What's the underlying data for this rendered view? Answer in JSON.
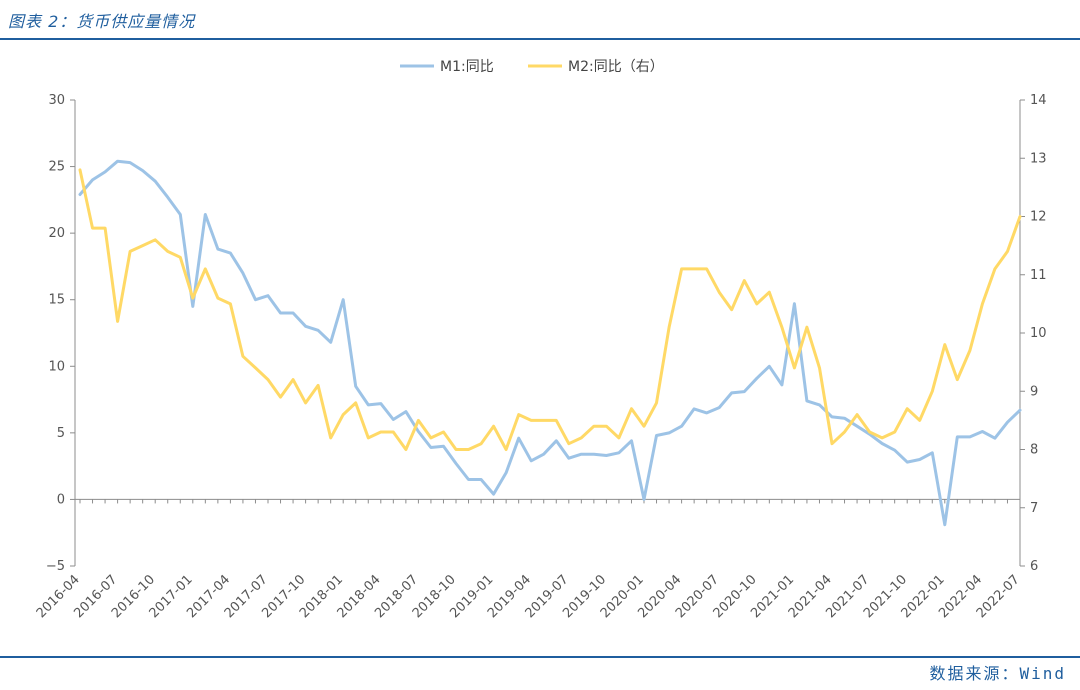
{
  "header": {
    "title": "图表 2：货币供应量情况"
  },
  "footer": {
    "source": "数据来源：Wind"
  },
  "chart_data": {
    "type": "line",
    "title": "",
    "x": [
      "2016-04",
      "2016-05",
      "2016-06",
      "2016-07",
      "2016-08",
      "2016-09",
      "2016-10",
      "2016-11",
      "2016-12",
      "2017-01",
      "2017-02",
      "2017-03",
      "2017-04",
      "2017-05",
      "2017-06",
      "2017-07",
      "2017-08",
      "2017-09",
      "2017-10",
      "2017-11",
      "2017-12",
      "2018-01",
      "2018-02",
      "2018-03",
      "2018-04",
      "2018-05",
      "2018-06",
      "2018-07",
      "2018-08",
      "2018-09",
      "2018-10",
      "2018-11",
      "2018-12",
      "2019-01",
      "2019-02",
      "2019-03",
      "2019-04",
      "2019-05",
      "2019-06",
      "2019-07",
      "2019-08",
      "2019-09",
      "2019-10",
      "2019-11",
      "2019-12",
      "2020-01",
      "2020-02",
      "2020-03",
      "2020-04",
      "2020-05",
      "2020-06",
      "2020-07",
      "2020-08",
      "2020-09",
      "2020-10",
      "2020-11",
      "2020-12",
      "2021-01",
      "2021-02",
      "2021-03",
      "2021-04",
      "2021-05",
      "2021-06",
      "2021-07",
      "2021-08",
      "2021-09",
      "2021-10",
      "2021-11",
      "2021-12",
      "2022-01",
      "2022-02",
      "2022-03",
      "2022-04",
      "2022-05",
      "2022-06",
      "2022-07"
    ],
    "x_tick_labels": [
      "2016-04",
      "2016-07",
      "2016-10",
      "2017-01",
      "2017-04",
      "2017-07",
      "2017-10",
      "2018-01",
      "2018-04",
      "2018-07",
      "2018-10",
      "2019-01",
      "2019-04",
      "2019-07",
      "2019-10",
      "2020-01",
      "2020-04",
      "2020-07",
      "2020-10",
      "2021-01",
      "2021-04",
      "2021-07",
      "2021-10",
      "2022-01",
      "2022-04",
      "2022-07"
    ],
    "y_left": {
      "range": [
        -5,
        30
      ],
      "ticks": [
        -5,
        0,
        5,
        10,
        15,
        20,
        25,
        30
      ]
    },
    "y_right": {
      "range": [
        6,
        14
      ],
      "ticks": [
        6,
        7,
        8,
        9,
        10,
        11,
        12,
        13,
        14
      ]
    },
    "legend_position": "top-center",
    "grid": false,
    "series": [
      {
        "name": "M1:同比",
        "axis": "left",
        "color": "#9dc3e6",
        "values": [
          22.9,
          24.0,
          24.6,
          25.4,
          25.3,
          24.7,
          23.9,
          22.7,
          21.4,
          14.5,
          21.4,
          18.8,
          18.5,
          17.0,
          15.0,
          15.3,
          14.0,
          14.0,
          13.0,
          12.7,
          11.8,
          15.0,
          8.5,
          7.1,
          7.2,
          6.0,
          6.6,
          5.1,
          3.9,
          4.0,
          2.7,
          1.5,
          1.5,
          0.4,
          2.0,
          4.6,
          2.9,
          3.4,
          4.4,
          3.1,
          3.4,
          3.4,
          3.3,
          3.5,
          4.4,
          0.0,
          4.8,
          5.0,
          5.5,
          6.8,
          6.5,
          6.9,
          8.0,
          8.1,
          9.1,
          10.0,
          8.6,
          14.7,
          7.4,
          7.1,
          6.2,
          6.1,
          5.5,
          4.9,
          4.2,
          3.7,
          2.8,
          3.0,
          3.5,
          -1.9,
          4.7,
          4.7,
          5.1,
          4.6,
          5.8,
          6.7
        ]
      },
      {
        "name": "M2:同比（右）",
        "axis": "right",
        "color": "#ffd966",
        "values": [
          12.8,
          11.8,
          11.8,
          10.2,
          11.4,
          11.5,
          11.6,
          11.4,
          11.3,
          10.6,
          11.1,
          10.6,
          10.5,
          9.6,
          9.4,
          9.2,
          8.9,
          9.2,
          8.8,
          9.1,
          8.2,
          8.6,
          8.8,
          8.2,
          8.3,
          8.3,
          8.0,
          8.5,
          8.2,
          8.3,
          8.0,
          8.0,
          8.1,
          8.4,
          8.0,
          8.6,
          8.5,
          8.5,
          8.5,
          8.1,
          8.2,
          8.4,
          8.4,
          8.2,
          8.7,
          8.4,
          8.8,
          10.1,
          11.1,
          11.1,
          11.1,
          10.7,
          10.4,
          10.9,
          10.5,
          10.7,
          10.1,
          9.4,
          10.1,
          9.4,
          8.1,
          8.3,
          8.6,
          8.3,
          8.2,
          8.3,
          8.7,
          8.5,
          9.0,
          9.8,
          9.2,
          9.7,
          10.5,
          11.1,
          11.4,
          12.0
        ]
      }
    ]
  }
}
